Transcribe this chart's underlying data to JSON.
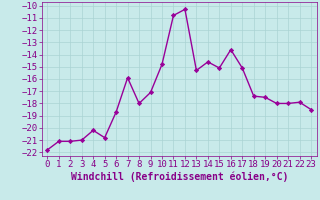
{
  "x": [
    0,
    1,
    2,
    3,
    4,
    5,
    6,
    7,
    8,
    9,
    10,
    11,
    12,
    13,
    14,
    15,
    16,
    17,
    18,
    19,
    20,
    21,
    22,
    23
  ],
  "y": [
    -21.8,
    -21.1,
    -21.1,
    -21.0,
    -20.2,
    -20.8,
    -18.7,
    -15.9,
    -18.0,
    -17.1,
    -14.8,
    -10.8,
    -10.3,
    -15.3,
    -14.6,
    -15.1,
    -13.6,
    -15.1,
    -17.4,
    -17.5,
    -18.0,
    -18.0,
    -17.9,
    -18.5
  ],
  "line_color": "#990099",
  "marker": "D",
  "marker_size": 2.2,
  "xlabel": "Windchill (Refroidissement éolien,°C)",
  "xlim_min": -0.5,
  "xlim_max": 23.5,
  "ylim_min": -22.3,
  "ylim_max": -9.7,
  "yticks": [
    -22,
    -21,
    -20,
    -19,
    -18,
    -17,
    -16,
    -15,
    -14,
    -13,
    -12,
    -11,
    -10
  ],
  "xticks": [
    0,
    1,
    2,
    3,
    4,
    5,
    6,
    7,
    8,
    9,
    10,
    11,
    12,
    13,
    14,
    15,
    16,
    17,
    18,
    19,
    20,
    21,
    22,
    23
  ],
  "grid_color": "#aad4d4",
  "bg_color": "#c8eaea",
  "font_color": "#880088",
  "tick_fontsize": 6.5,
  "xlabel_fontsize": 7,
  "linewidth": 1.0
}
